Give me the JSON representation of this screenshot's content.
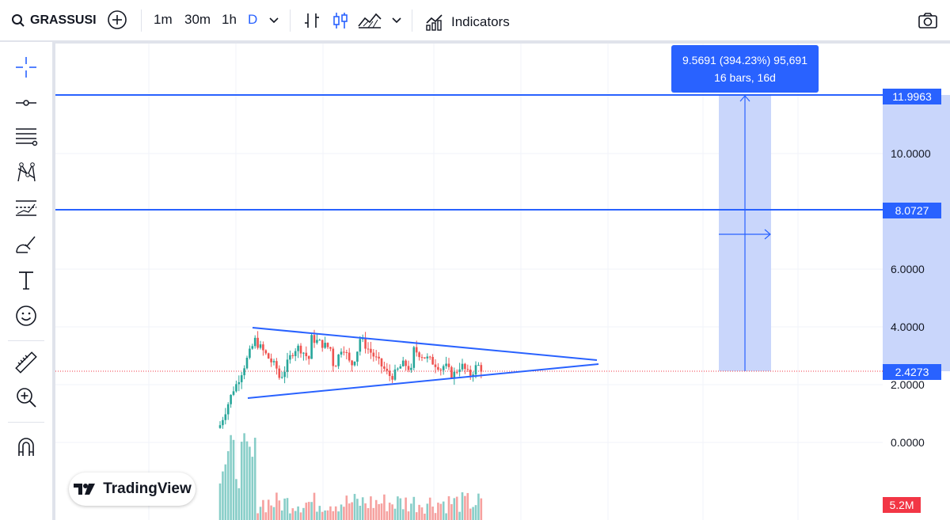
{
  "toolbar": {
    "symbol": "GRASSUSI",
    "intervals": [
      "1m",
      "30m",
      "1h",
      "D"
    ],
    "active_interval": "D",
    "indicators_label": "Indicators"
  },
  "left_tools": [
    "crosshair-icon",
    "horizontal-line-icon",
    "fib-lines-icon",
    "pattern-icon",
    "prediction-icon",
    "brush-icon",
    "text-icon",
    "emoji-icon",
    "ruler-icon",
    "zoom-icon",
    "magnet-icon"
  ],
  "price_axis": {
    "ticks": [
      "10.0000",
      "6.0000",
      "4.0000",
      "2.0000",
      "0.0000"
    ],
    "tags": [
      {
        "label": "11.9963",
        "color": "#2962ff"
      },
      {
        "label": "8.0727",
        "color": "#2962ff"
      },
      {
        "label": "2.4273",
        "color": "#2962ff"
      },
      {
        "label": "5.2M",
        "color": "#f23645"
      }
    ]
  },
  "measure": {
    "line1": "9.5691 (394.23%) 95,691",
    "line2": "16 bars, 16d"
  },
  "logo": {
    "text": "TradingView"
  },
  "colors": {
    "up": "#26a69a",
    "down": "#ef5350",
    "accent": "#2962ff",
    "measure_fill": "#c9d6fb"
  }
}
